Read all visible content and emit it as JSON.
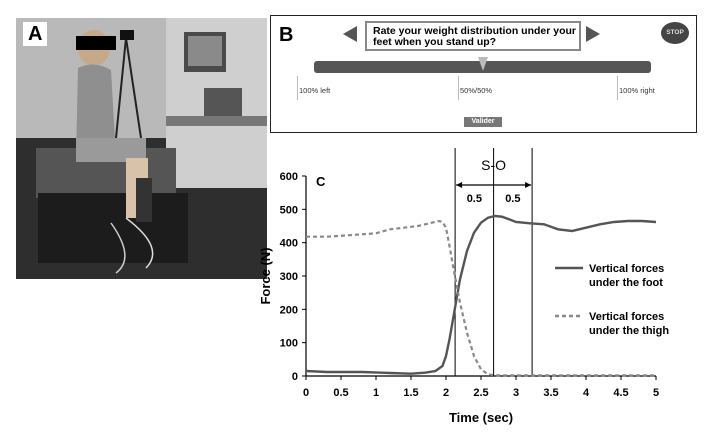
{
  "panels": {
    "a": {
      "letter": "A"
    },
    "b": {
      "letter": "B",
      "prompt": "Rate your weight distribution under your feet when you stand up?",
      "stop_label": "STOP",
      "scale": {
        "left": "100% left",
        "middle": "50%/50%",
        "right": "100% right"
      },
      "slider_value": 0.5,
      "validate_label": "Valider"
    },
    "c": {
      "letter": "C",
      "interval_label": "S-O",
      "interval_left": "0.5",
      "interval_right": "0.5"
    }
  },
  "chart_data": {
    "type": "line",
    "xlabel": "Time (sec)",
    "ylabel": "Force (N)",
    "xlim": [
      0,
      5
    ],
    "ylim": [
      0,
      600
    ],
    "xticks": [
      "0",
      "0.5",
      "1",
      "1.5",
      "2",
      "2.5",
      "3",
      "3.5",
      "4",
      "4.5",
      "5"
    ],
    "yticks": [
      "0",
      "100",
      "200",
      "300",
      "400",
      "500",
      "600"
    ],
    "grid": false,
    "legend_position": "right",
    "vertical_markers": [
      2.13,
      2.68,
      3.23
    ],
    "series": [
      {
        "name": "Vertical forces under the foot",
        "style": "solid",
        "color": "#555555",
        "x": [
          0,
          0.3,
          0.8,
          1.2,
          1.5,
          1.7,
          1.85,
          1.95,
          2.0,
          2.05,
          2.1,
          2.15,
          2.2,
          2.3,
          2.4,
          2.5,
          2.6,
          2.7,
          2.8,
          2.9,
          3.0,
          3.2,
          3.4,
          3.6,
          3.8,
          4.0,
          4.2,
          4.4,
          4.6,
          4.8,
          5.0
        ],
        "y": [
          15,
          12,
          12,
          9,
          7,
          10,
          15,
          30,
          60,
          110,
          170,
          230,
          290,
          375,
          430,
          460,
          475,
          480,
          478,
          470,
          462,
          458,
          455,
          440,
          435,
          445,
          455,
          462,
          465,
          465,
          462
        ]
      },
      {
        "name": "Vertical forces under the thigh",
        "style": "dashed",
        "color": "#888888",
        "x": [
          0,
          0.3,
          0.6,
          1.0,
          1.2,
          1.4,
          1.6,
          1.8,
          1.9,
          1.95,
          2.0,
          2.05,
          2.1,
          2.2,
          2.3,
          2.4,
          2.5,
          2.6,
          2.7,
          2.8,
          3.0,
          3.5,
          4.0,
          4.5,
          5.0
        ],
        "y": [
          418,
          418,
          422,
          428,
          440,
          445,
          450,
          460,
          465,
          462,
          445,
          390,
          330,
          220,
          130,
          60,
          20,
          5,
          2,
          2,
          2,
          2,
          2,
          2,
          2
        ]
      }
    ]
  }
}
